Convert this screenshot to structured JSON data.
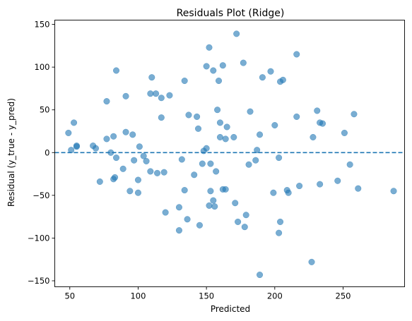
{
  "chart_data": {
    "type": "scatter",
    "title": "Residuals Plot (Ridge)",
    "xlabel": "Predicted",
    "ylabel": "Residual (y_true - y_pred)",
    "xlim": [
      39,
      295
    ],
    "ylim": [
      -157,
      155
    ],
    "xticks": [
      50,
      100,
      150,
      200,
      250
    ],
    "yticks": [
      -150,
      -100,
      -50,
      0,
      50,
      100,
      150
    ],
    "ytick_labels": [
      "−150",
      "−100",
      "−50",
      "0",
      "50",
      "100",
      "150"
    ],
    "grid": false,
    "reference_line": {
      "y": 0,
      "style": "dashed",
      "color": "#1f77b4"
    },
    "point_color": "#1f77b4",
    "points": [
      [
        49,
        23
      ],
      [
        51,
        3
      ],
      [
        53,
        35
      ],
      [
        55,
        8
      ],
      [
        55,
        7
      ],
      [
        67,
        8
      ],
      [
        69,
        5
      ],
      [
        72,
        -34
      ],
      [
        77,
        16
      ],
      [
        77,
        60
      ],
      [
        80,
        0
      ],
      [
        82,
        19
      ],
      [
        82,
        -31
      ],
      [
        83,
        -29
      ],
      [
        84,
        96
      ],
      [
        84,
        -6
      ],
      [
        89,
        -19
      ],
      [
        91,
        24
      ],
      [
        91,
        66
      ],
      [
        94,
        -45
      ],
      [
        96,
        21
      ],
      [
        97,
        -9
      ],
      [
        100,
        -47
      ],
      [
        100,
        -32
      ],
      [
        101,
        7
      ],
      [
        104,
        -4
      ],
      [
        106,
        -10
      ],
      [
        109,
        69
      ],
      [
        109,
        -22
      ],
      [
        110,
        88
      ],
      [
        113,
        69
      ],
      [
        114,
        -24
      ],
      [
        117,
        64
      ],
      [
        117,
        41
      ],
      [
        119,
        -23
      ],
      [
        120,
        -70
      ],
      [
        123,
        67
      ],
      [
        130,
        -64
      ],
      [
        130,
        -91
      ],
      [
        132,
        -8
      ],
      [
        134,
        -44
      ],
      [
        134,
        84
      ],
      [
        136,
        -78
      ],
      [
        137,
        44
      ],
      [
        141,
        -26
      ],
      [
        143,
        42
      ],
      [
        144,
        28
      ],
      [
        145,
        -85
      ],
      [
        147,
        -13
      ],
      [
        148,
        2
      ],
      [
        150,
        5
      ],
      [
        150,
        101
      ],
      [
        152,
        123
      ],
      [
        152,
        -62
      ],
      [
        153,
        -13
      ],
      [
        153,
        -45
      ],
      [
        155,
        96
      ],
      [
        155,
        -56
      ],
      [
        156,
        -63
      ],
      [
        157,
        -22
      ],
      [
        158,
        50
      ],
      [
        159,
        84
      ],
      [
        160,
        18
      ],
      [
        160,
        35
      ],
      [
        162,
        102
      ],
      [
        162,
        -43
      ],
      [
        164,
        16
      ],
      [
        164,
        -43
      ],
      [
        165,
        30
      ],
      [
        170,
        18
      ],
      [
        171,
        -59
      ],
      [
        172,
        139
      ],
      [
        173,
        -81
      ],
      [
        177,
        105
      ],
      [
        178,
        -87
      ],
      [
        179,
        -73
      ],
      [
        181,
        -14
      ],
      [
        182,
        48
      ],
      [
        186,
        -9
      ],
      [
        187,
        3
      ],
      [
        189,
        -143
      ],
      [
        189,
        21
      ],
      [
        191,
        88
      ],
      [
        197,
        95
      ],
      [
        199,
        -47
      ],
      [
        200,
        32
      ],
      [
        203,
        -94
      ],
      [
        203,
        -6
      ],
      [
        204,
        83
      ],
      [
        204,
        -81
      ],
      [
        206,
        85
      ],
      [
        209,
        -44
      ],
      [
        210,
        -47
      ],
      [
        216,
        42
      ],
      [
        216,
        115
      ],
      [
        218,
        -39
      ],
      [
        227,
        -128
      ],
      [
        228,
        18
      ],
      [
        231,
        49
      ],
      [
        233,
        -37
      ],
      [
        233,
        35
      ],
      [
        235,
        34
      ],
      [
        246,
        -33
      ],
      [
        251,
        23
      ],
      [
        255,
        -14
      ],
      [
        258,
        45
      ],
      [
        261,
        -42
      ],
      [
        287,
        -45
      ]
    ]
  }
}
